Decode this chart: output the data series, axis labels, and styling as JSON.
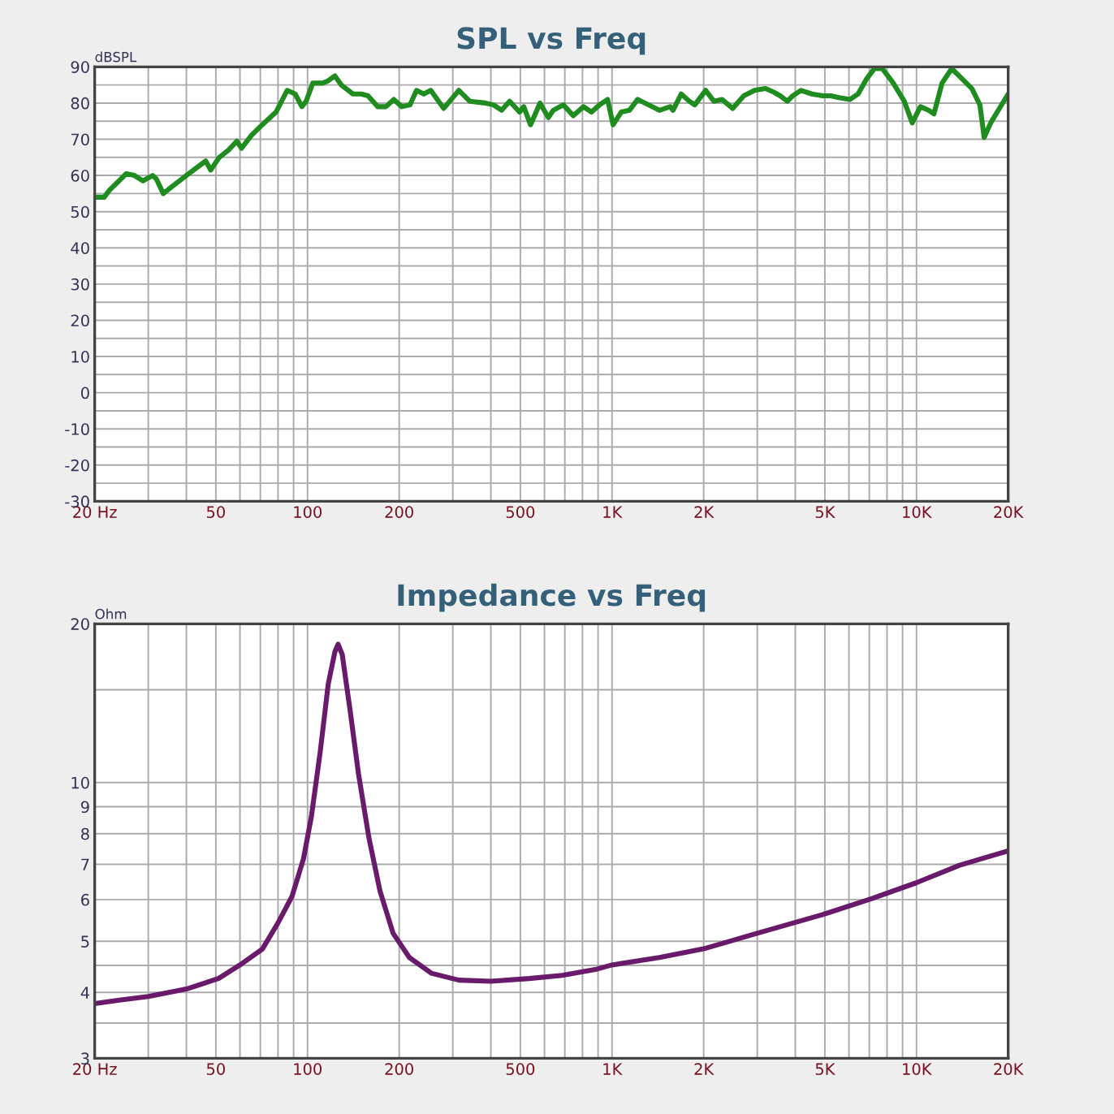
{
  "chart_data": [
    {
      "type": "line",
      "title": "SPL vs Freq",
      "ylabel": "dBSPL",
      "log": "x",
      "grid": true,
      "legend": false,
      "marker": "none",
      "line_style": "solid",
      "xlim": [
        20,
        20000
      ],
      "xticks": [
        {
          "value": 20,
          "label": "20 Hz"
        },
        {
          "value": 30,
          "label": null
        },
        {
          "value": 40,
          "label": null
        },
        50,
        {
          "value": 60,
          "label": null
        },
        {
          "value": 70,
          "label": null
        },
        {
          "value": 80,
          "label": null
        },
        {
          "value": 90,
          "label": null
        },
        100,
        200,
        {
          "value": 300,
          "label": null
        },
        {
          "value": 400,
          "label": null
        },
        500,
        {
          "value": 600,
          "label": null
        },
        {
          "value": 700,
          "label": null
        },
        {
          "value": 800,
          "label": null
        },
        {
          "value": 900,
          "label": null
        },
        {
          "value": 1000,
          "label": "1K"
        },
        {
          "value": 2000,
          "label": "2K"
        },
        {
          "value": 3000,
          "label": null
        },
        {
          "value": 4000,
          "label": null
        },
        {
          "value": 5000,
          "label": "5K"
        },
        {
          "value": 6000,
          "label": null
        },
        {
          "value": 7000,
          "label": null
        },
        {
          "value": 8000,
          "label": null
        },
        {
          "value": 9000,
          "label": null
        },
        {
          "value": 10000,
          "label": "10K"
        },
        {
          "value": 20000,
          "label": "20K"
        }
      ],
      "ylim": [
        -30,
        90
      ],
      "yticks": [
        -30,
        {
          "value": -25,
          "label": null
        },
        -20,
        {
          "value": -15,
          "label": null
        },
        -10,
        {
          "value": -5,
          "label": null
        },
        0,
        {
          "value": 5,
          "label": null
        },
        10,
        {
          "value": 15,
          "label": null
        },
        20,
        {
          "value": 25,
          "label": null
        },
        30,
        {
          "value": 35,
          "label": null
        },
        40,
        {
          "value": 45,
          "label": null
        },
        50,
        {
          "value": 55,
          "label": null
        },
        60,
        {
          "value": 65,
          "label": null
        },
        70,
        {
          "value": 75,
          "label": null
        },
        80,
        {
          "value": 85,
          "label": null
        },
        90
      ],
      "series": [
        {
          "color": "#1e8c1e",
          "x": [
            20,
            21.5,
            22.4,
            23.7,
            25.4,
            27,
            28.8,
            31,
            31.9,
            33.6,
            36,
            40,
            43.8,
            46.3,
            48.1,
            51.3,
            55,
            58.6,
            60.7,
            65.3,
            71,
            78.8,
            85.7,
            91.1,
            95.8,
            99,
            104,
            112,
            116,
            123,
            129,
            141,
            150,
            158,
            170,
            181,
            192,
            204,
            217,
            228,
            241,
            254,
            280,
            314,
            341,
            384,
            408,
            434,
            461,
            497,
            513,
            540,
            580,
            618,
            641,
            692,
            746,
            806,
            856,
            910,
            967,
            1008,
            1072,
            1141,
            1214,
            1318,
            1431,
            1553,
            1586,
            1687,
            1795,
            1870,
            2030,
            2160,
            2297,
            2492,
            2708,
            2940,
            3192,
            3398,
            3568,
            3765,
            3923,
            4175,
            4533,
            4923,
            5236,
            5567,
            6045,
            6428,
            6835,
            7268,
            7729,
            8391,
            9113,
            9685,
            10300,
            10950,
            11410,
            12130,
            13050,
            13990,
            15200,
            16150,
            16680,
            17520,
            20000
          ],
          "values": [
            54,
            54,
            56,
            58,
            60.5,
            60,
            58.5,
            60,
            59,
            55,
            57,
            60,
            62.5,
            64,
            61.5,
            65,
            67,
            69.5,
            67.5,
            71,
            74,
            77.5,
            83.5,
            82.5,
            79,
            80.5,
            85.5,
            85.5,
            86,
            87.5,
            85,
            82.5,
            82.5,
            82,
            79,
            79,
            81,
            79,
            79.5,
            83.5,
            82.5,
            83.5,
            78.5,
            83.5,
            80.5,
            80,
            79.5,
            78,
            80.5,
            77.5,
            79,
            74,
            80,
            76,
            78,
            79.5,
            76.5,
            79,
            77.5,
            79.5,
            81,
            74,
            77.5,
            78,
            81,
            79.5,
            78,
            79,
            78,
            82.5,
            80.5,
            79.5,
            83.5,
            80.5,
            81,
            78.5,
            82,
            83.5,
            84,
            83,
            82,
            80.5,
            82,
            83.5,
            82.5,
            82,
            82,
            81.5,
            81,
            82.5,
            86.5,
            89.5,
            89.5,
            85.5,
            80.5,
            74.5,
            79,
            78,
            77,
            85.5,
            89.5,
            87,
            84,
            79.5,
            70.5,
            74.5,
            82.5
          ]
        }
      ]
    },
    {
      "type": "line",
      "title": "Impedance vs Freq",
      "ylabel": "Ohm",
      "log": "xy",
      "grid": true,
      "legend": false,
      "marker": "none",
      "line_style": "solid",
      "xlim": [
        20,
        20000
      ],
      "xticks": [
        {
          "value": 20,
          "label": "20 Hz"
        },
        {
          "value": 30,
          "label": null
        },
        {
          "value": 40,
          "label": null
        },
        50,
        {
          "value": 60,
          "label": null
        },
        {
          "value": 70,
          "label": null
        },
        {
          "value": 80,
          "label": null
        },
        {
          "value": 90,
          "label": null
        },
        100,
        200,
        {
          "value": 300,
          "label": null
        },
        {
          "value": 400,
          "label": null
        },
        500,
        {
          "value": 600,
          "label": null
        },
        {
          "value": 700,
          "label": null
        },
        {
          "value": 800,
          "label": null
        },
        {
          "value": 900,
          "label": null
        },
        {
          "value": 1000,
          "label": "1K"
        },
        {
          "value": 2000,
          "label": "2K"
        },
        {
          "value": 3000,
          "label": null
        },
        {
          "value": 4000,
          "label": null
        },
        {
          "value": 5000,
          "label": "5K"
        },
        {
          "value": 6000,
          "label": null
        },
        {
          "value": 7000,
          "label": null
        },
        {
          "value": 8000,
          "label": null
        },
        {
          "value": 9000,
          "label": null
        },
        {
          "value": 10000,
          "label": "10K"
        },
        {
          "value": 20000,
          "label": "20K"
        }
      ],
      "ylim": [
        3,
        20
      ],
      "yticks": [
        3,
        {
          "value": 3.5,
          "label": null
        },
        4,
        {
          "value": 4.5,
          "label": null
        },
        5,
        6,
        7,
        8,
        9,
        10,
        {
          "value": 15,
          "label": null
        },
        20
      ],
      "series": [
        {
          "color": "#6a1a6a",
          "x": [
            20,
            24.4,
            30,
            40,
            51,
            60,
            71,
            80,
            89,
            97,
            103,
            110,
            117,
            123,
            126,
            130,
            138,
            147,
            159,
            173,
            191,
            216,
            255,
            314,
            400,
            535,
            686,
            880,
            1000,
            1431,
            2030,
            3000,
            4920,
            7110,
            9940,
            13850,
            20000
          ],
          "values": [
            3.81,
            3.87,
            3.93,
            4.06,
            4.25,
            4.51,
            4.83,
            5.42,
            6.09,
            7.17,
            8.63,
            11.4,
            15.4,
            17.7,
            18.3,
            17.5,
            13.7,
            10.4,
            7.87,
            6.23,
            5.18,
            4.66,
            4.35,
            4.22,
            4.2,
            4.25,
            4.31,
            4.42,
            4.51,
            4.66,
            4.85,
            5.18,
            5.62,
            6.02,
            6.45,
            6.97,
            7.42
          ]
        }
      ]
    }
  ]
}
